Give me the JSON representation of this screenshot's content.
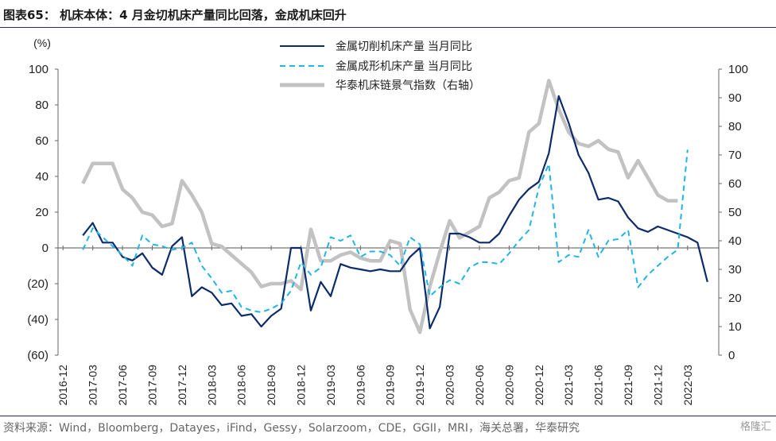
{
  "header": {
    "title": "图表65： 机床本体：4 月金切机床产量同比回落，金成机床回升"
  },
  "footer": {
    "source": "资料来源：Wind，Bloomberg，Datayes，iFind，Gessy，Solarzoom，CDE，GGII，MRI，海关总署，华泰研究",
    "watermark": "格隆汇"
  },
  "chart_data": {
    "type": "line",
    "unit_label": "(%)",
    "x_tick_labels": [
      "2016-12",
      "2017-03",
      "2017-06",
      "2017-09",
      "2017-12",
      "2018-03",
      "2018-06",
      "2018-09",
      "2018-12",
      "2019-03",
      "2019-06",
      "2019-09",
      "2019-12",
      "2020-03",
      "2020-06",
      "2020-09",
      "2020-12",
      "2021-03",
      "2021-06",
      "2021-09",
      "2021-12",
      "2022-03"
    ],
    "x_start": "2016-12",
    "y_left": {
      "min": -60,
      "max": 100,
      "step": 20,
      "tick_labels": [
        "(60)",
        "(40)",
        "(20)",
        "0",
        "20",
        "40",
        "60",
        "80",
        "100"
      ]
    },
    "y_right": {
      "min": 0,
      "max": 100,
      "step": 10,
      "tick_labels": [
        "0",
        "10",
        "20",
        "30",
        "40",
        "50",
        "60",
        "70",
        "80",
        "90",
        "100"
      ]
    },
    "series": [
      {
        "name": "金属切削机床产量 当月同比",
        "axis": "left",
        "color": "#0d2b6b",
        "dash": "solid",
        "start": "2017-02",
        "values": [
          7,
          14,
          3,
          3,
          -5,
          -7,
          -3,
          -11,
          -15,
          1,
          6,
          -27,
          -22,
          -25,
          -32,
          -31,
          -38,
          -37,
          -44,
          -38,
          -34,
          0,
          0,
          -35,
          -19,
          -27,
          -9,
          -11,
          -12,
          -13,
          -12,
          -13,
          -13,
          -5,
          0,
          -45,
          -33,
          8,
          8,
          6,
          3,
          3,
          8,
          18,
          27,
          33,
          37,
          53,
          85,
          70,
          52,
          42,
          27,
          28,
          26,
          17,
          11,
          9,
          12,
          10,
          8,
          6,
          3,
          -19
        ]
      },
      {
        "name": "金属成形机床产量 当月同比",
        "axis": "left",
        "color": "#1fb6e6",
        "dash": "dashed",
        "start": "2017-02",
        "values": [
          -1,
          11,
          6,
          1,
          -4,
          -10,
          7,
          2,
          1,
          -1,
          0,
          3,
          -10,
          -17,
          -25,
          -24,
          -33,
          -35,
          -36,
          -34,
          -31,
          -24,
          -8,
          -15,
          -11,
          6,
          4,
          7,
          -5,
          -2,
          -2,
          -4,
          -10,
          6,
          2,
          -27,
          -22,
          -18,
          -20,
          -11,
          -8,
          -8,
          -9,
          -3,
          4,
          10,
          34,
          47,
          -8,
          -4,
          -5,
          10,
          -5,
          4,
          5,
          10,
          -22,
          -15,
          -10,
          -5,
          -1,
          55
        ]
      },
      {
        "name": "华泰机床链景气指数（右轴）",
        "axis": "right",
        "color": "#c2c2c2",
        "dash": "solid",
        "start": "2017-02",
        "values": [
          60,
          67,
          67,
          67,
          58,
          55,
          50,
          49,
          45,
          46,
          61,
          56,
          50,
          39,
          38,
          35,
          32,
          29,
          24,
          25,
          25,
          26,
          23,
          44,
          33,
          33,
          35,
          36,
          34,
          33,
          33,
          40,
          39,
          16,
          8,
          24,
          36,
          47,
          41,
          43,
          45,
          55,
          57,
          61,
          62,
          78,
          81,
          96,
          86,
          78,
          74,
          73,
          75,
          72,
          71,
          62,
          68,
          62,
          56,
          54,
          54
        ]
      }
    ],
    "grid": false,
    "legend_position": "top-center"
  }
}
